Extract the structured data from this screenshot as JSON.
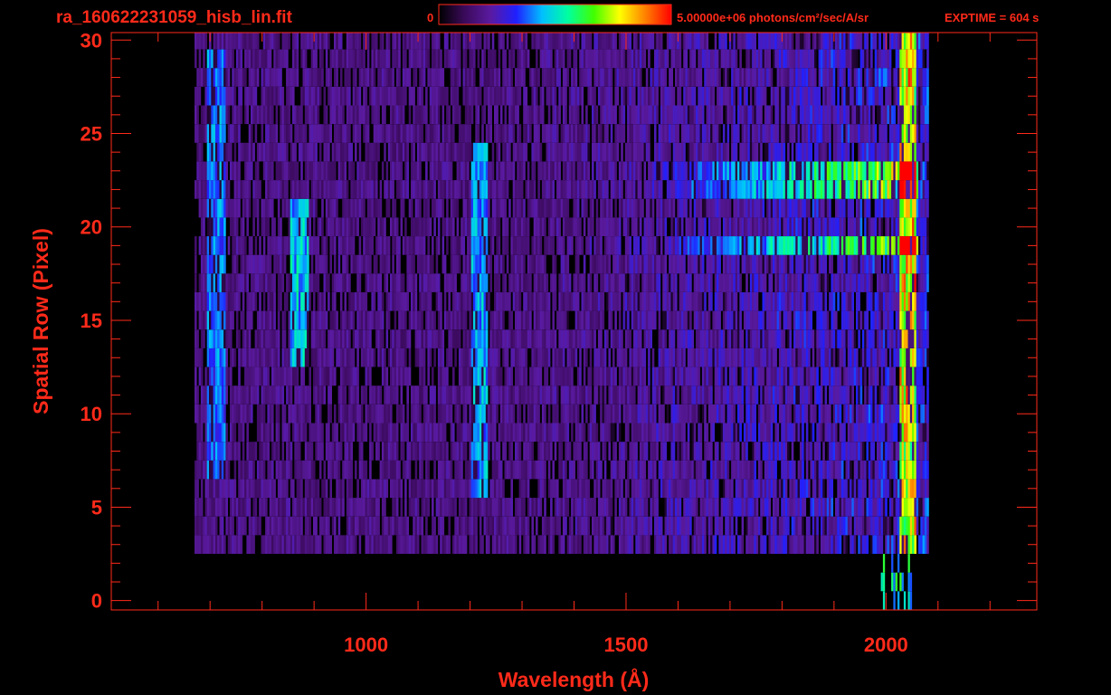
{
  "header": {
    "filename": "ra_160622231059_hisb_lin.fit",
    "colorbar_min_label": "0",
    "colorbar_max_label": "5.00000e+06 photons/cm²/sec/A/sr",
    "exptime_label": "EXPTIME = 604 s"
  },
  "colors": {
    "foreground": "#ff2a1a",
    "background": "#000000",
    "colormap": [
      "#000000",
      "#3a0a5a",
      "#5a1aa0",
      "#2020ff",
      "#00c0ff",
      "#00ffa0",
      "#40ff00",
      "#ffff00",
      "#ff8000",
      "#ff0000"
    ]
  },
  "chart_data": {
    "type": "heatmap",
    "title": "ra_160622231059_hisb_lin.fit",
    "xlabel": "Wavelength (Å)",
    "ylabel": "Spatial Row (Pixel)",
    "xlim": [
      510,
      2290
    ],
    "ylim": [
      -0.5,
      30.4
    ],
    "x_ticks": [
      1000,
      1500,
      2000
    ],
    "x_tick_labels": [
      "1000",
      "1500",
      "2000"
    ],
    "y_ticks": [
      0,
      5,
      10,
      15,
      20,
      25,
      30
    ],
    "y_tick_labels": [
      "0",
      "5",
      "10",
      "15",
      "20",
      "25",
      "30"
    ],
    "x_minor_step": 100,
    "y_minor_step": 1,
    "zlim": [
      0,
      5000000
    ],
    "z_unit": "photons/cm²/sec/A/sr",
    "grid": false,
    "rows": 31,
    "wavelength_range": [
      670,
      2080
    ],
    "row_range": [
      3,
      30
    ],
    "features": [
      {
        "name": "bright-rows-long-wavelength",
        "rows": [
          19,
          22,
          23
        ],
        "wavelength_range": [
          1500,
          2060
        ],
        "level": 0.55
      },
      {
        "name": "emission-line",
        "wavelength": 1216,
        "rows": [
          6,
          24
        ],
        "level": 0.3
      },
      {
        "name": "emission-line",
        "wavelength": 870,
        "rows": [
          13,
          21
        ],
        "level": 0.35
      },
      {
        "name": "emission-line",
        "wavelength": 710,
        "rows": [
          7,
          29
        ],
        "level": 0.25
      },
      {
        "name": "red-edge",
        "wavelength": 2040,
        "rows": [
          3,
          30
        ],
        "level": 0.6
      }
    ]
  }
}
